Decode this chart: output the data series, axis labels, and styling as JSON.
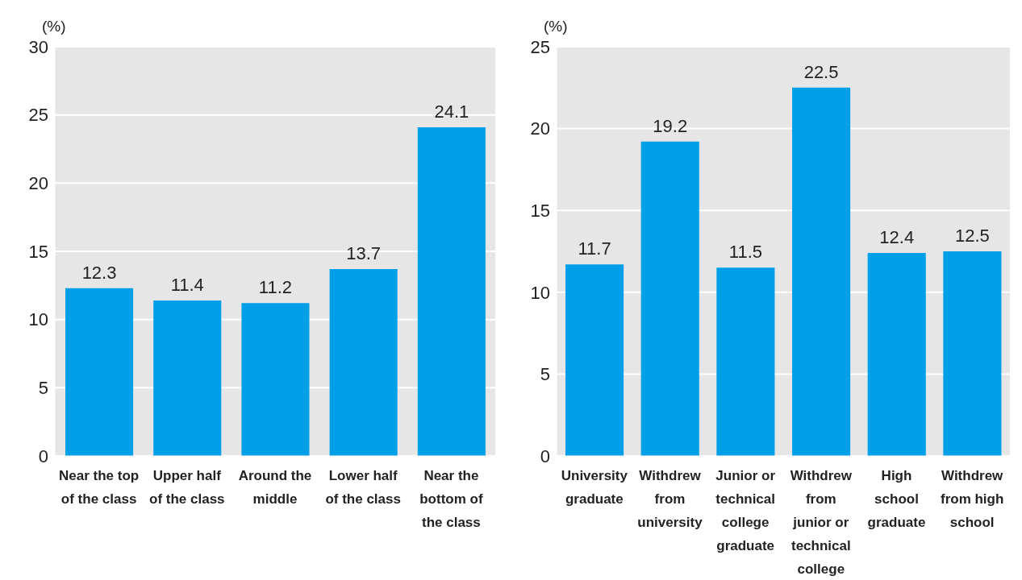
{
  "chart_data": [
    {
      "type": "bar",
      "ylabel": "(%)",
      "categories": [
        "Near the top of the class",
        "Upper half of the class",
        "Around the middle",
        "Lower half of the class",
        "Near the bottom of the class"
      ],
      "values": [
        12.3,
        11.4,
        11.2,
        13.7,
        24.1
      ],
      "color": "#00a0e9",
      "ylim": [
        0,
        30
      ],
      "yticks": [
        0,
        5,
        10,
        15,
        20,
        25,
        30
      ],
      "grid": "y",
      "data_labels": true
    },
    {
      "type": "bar",
      "ylabel": "(%)",
      "categories": [
        "University graduate",
        "Withdrew from university",
        "Junior or technical college graduate",
        "Withdrew from junior or technical college",
        "High school graduate",
        "Withdrew from high school"
      ],
      "values": [
        11.7,
        19.2,
        11.5,
        22.5,
        12.4,
        12.5
      ],
      "color": "#00a0e9",
      "ylim": [
        0,
        25
      ],
      "yticks": [
        0,
        5,
        10,
        15,
        20,
        25
      ],
      "grid": "y",
      "data_labels": true
    }
  ]
}
